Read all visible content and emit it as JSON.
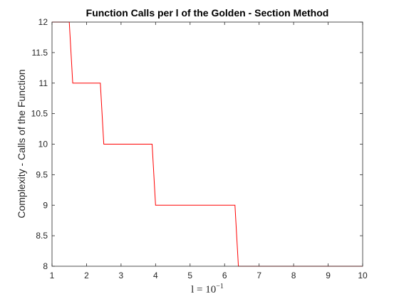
{
  "chart_data": {
    "type": "line",
    "title": "Function Calls per l of the Golden - Section Method",
    "xlabel": "l = 10",
    "xlabel_exponent": "−1",
    "ylabel": "Complexity - Calls of the Function",
    "xlim": [
      1,
      10
    ],
    "ylim": [
      8,
      12
    ],
    "xticks": [
      1,
      2,
      3,
      4,
      5,
      6,
      7,
      8,
      9,
      10
    ],
    "yticks": [
      8,
      8.5,
      9,
      9.5,
      10,
      10.5,
      11,
      11.5,
      12
    ],
    "grid": false,
    "series": [
      {
        "color": "#ff0000",
        "x": [
          1.0,
          1.5,
          1.6,
          2.4,
          2.5,
          3.9,
          4.0,
          6.3,
          6.4,
          10.0
        ],
        "y": [
          12,
          12,
          11,
          11,
          10,
          10,
          9,
          9,
          8,
          8
        ]
      }
    ]
  }
}
